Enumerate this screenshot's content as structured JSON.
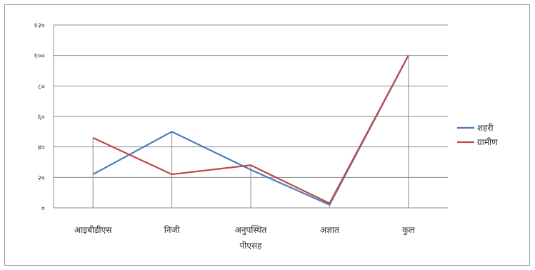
{
  "chart_data": {
    "type": "line",
    "title": "",
    "xlabel": "",
    "ylabel": "",
    "categories": [
      "आइबीडीएस",
      "निजी",
      "अनुपस्थित पीएसह",
      "अज्ञात",
      "कुल"
    ],
    "yticks": [
      "०",
      "२०",
      "४०",
      "६०",
      "८०",
      "१००",
      "१२०"
    ],
    "ylim": [
      0,
      120
    ],
    "grid": true,
    "drop_lines": true,
    "legend_position": "right",
    "series": [
      {
        "name": "शहरी",
        "color": "#4a7ebb",
        "values": [
          22,
          50,
          25,
          2,
          100
        ]
      },
      {
        "name": "ग्रामीण",
        "color": "#be4b48",
        "values": [
          46,
          22,
          28,
          3,
          100
        ]
      }
    ]
  }
}
